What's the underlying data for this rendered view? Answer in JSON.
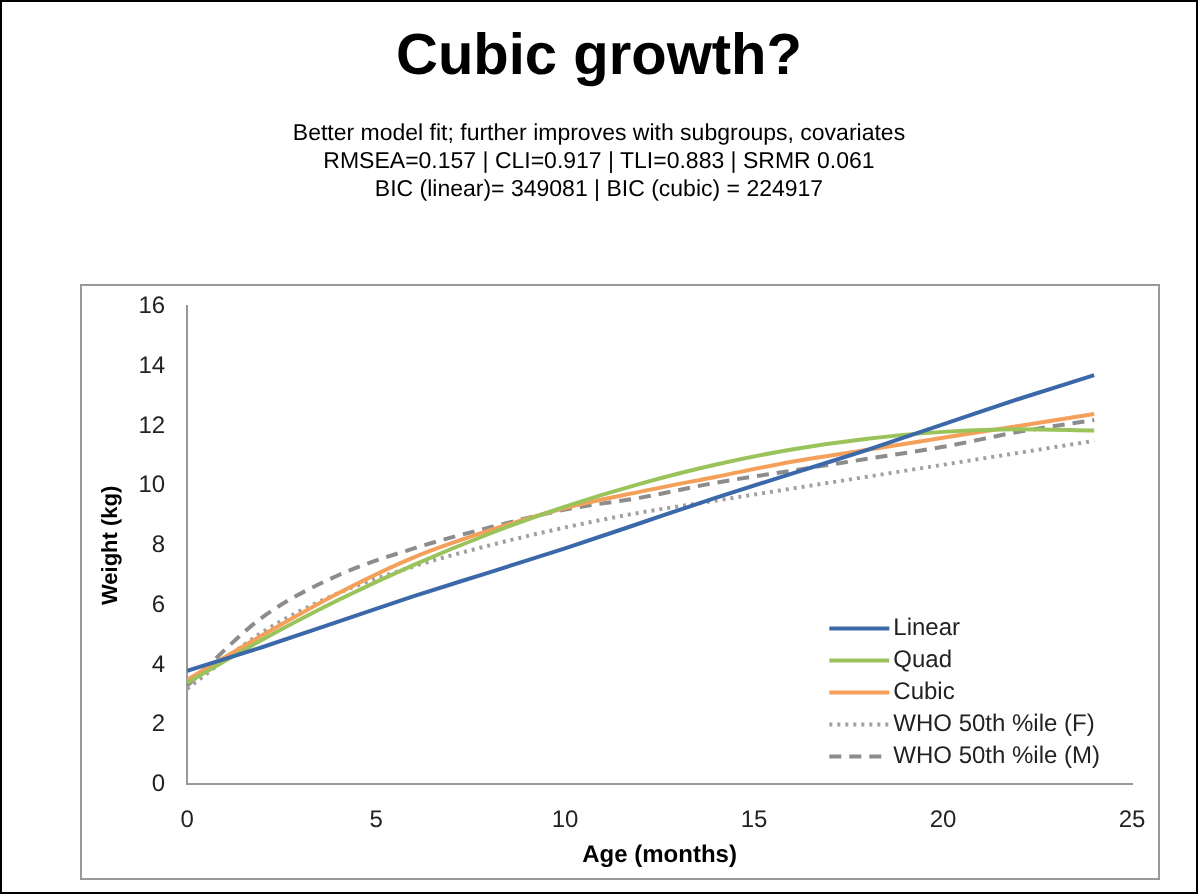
{
  "chart_data": {
    "type": "line",
    "title": "Cubic growth?",
    "subtitle": "Better model fit; further improves with subgroups, covariates\nRMSEA=0.157 | CLI=0.917 | TLI=0.883 | SRMR 0.061\nBIC (linear)= 349081 | BIC (cubic) = 224917",
    "xlabel": "Age (months)",
    "ylabel": "Weight (kg)",
    "x": [
      0,
      2,
      4,
      6,
      8,
      10,
      12,
      14,
      16,
      18,
      20,
      22,
      24
    ],
    "series": [
      {
        "name": "Linear",
        "color": "#3a68a8",
        "line_style": "solid",
        "values": [
          3.8,
          4.6,
          5.45,
          6.3,
          7.1,
          7.9,
          8.75,
          9.6,
          10.4,
          11.2,
          12.05,
          12.9,
          13.7
        ]
      },
      {
        "name": "Quad",
        "color": "#9bc35b",
        "line_style": "solid",
        "values": [
          3.4,
          4.85,
          6.17,
          7.35,
          8.39,
          9.3,
          10.07,
          10.71,
          11.21,
          11.57,
          11.8,
          11.89,
          11.85
        ]
      },
      {
        "name": "Cubic",
        "color": "#f5a05a",
        "line_style": "solid",
        "values": [
          3.5,
          5.0,
          6.4,
          7.6,
          8.5,
          9.25,
          9.8,
          10.3,
          10.8,
          11.2,
          11.6,
          12.0,
          12.4
        ]
      },
      {
        "name": "WHO 50th %ile (F)",
        "color": "#a0a0a0",
        "line_style": "dotted",
        "values": [
          3.2,
          5.1,
          6.4,
          7.3,
          8.0,
          8.6,
          9.1,
          9.5,
          9.9,
          10.3,
          10.7,
          11.1,
          11.5
        ]
      },
      {
        "name": "WHO 50th %ile (M)",
        "color": "#8c8c8c",
        "line_style": "dashed",
        "values": [
          3.3,
          5.6,
          7.0,
          7.9,
          8.6,
          9.2,
          9.6,
          10.1,
          10.5,
          10.9,
          11.3,
          11.8,
          12.2
        ]
      }
    ],
    "xlim": [
      0,
      25
    ],
    "xticks": [
      0,
      5,
      10,
      15,
      20,
      25
    ],
    "ylim": [
      0,
      16
    ],
    "yticks": [
      0,
      2,
      4,
      6,
      8,
      10,
      12,
      14,
      16
    ],
    "grid": false,
    "legend": "bottom right",
    "marker": "none"
  }
}
